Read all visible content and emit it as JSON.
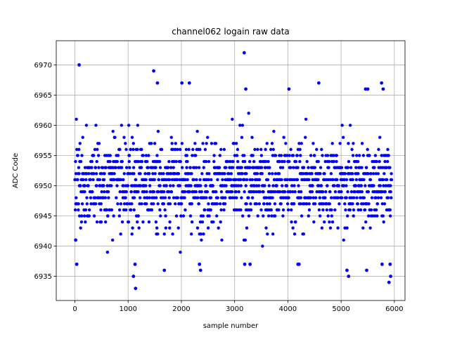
{
  "chart_data": {
    "type": "scatter",
    "title": "channel062 logain raw data",
    "xlabel": "sample number",
    "ylabel": "ADC Code",
    "xlim": [
      -350,
      6200
    ],
    "ylim": [
      6931,
      6974
    ],
    "xticks": [
      0,
      1000,
      2000,
      3000,
      4000,
      5000,
      6000
    ],
    "xtick_labels": [
      "0",
      "1000",
      "2000",
      "3000",
      "4000",
      "5000",
      "6000"
    ],
    "yticks": [
      6935,
      6940,
      6945,
      6950,
      6955,
      6960,
      6965,
      6970
    ],
    "ytick_labels": [
      "6935",
      "6940",
      "6945",
      "6950",
      "6955",
      "6960",
      "6965",
      "6970"
    ],
    "grid": true,
    "marker_color": "#0000ff",
    "n_samples": 5950,
    "center_value": 6950.5,
    "typical_range": [
      6939,
      6963
    ],
    "outliers": [
      {
        "x": 80,
        "y": 6970
      },
      {
        "x": 35,
        "y": 6937
      },
      {
        "x": 15,
        "y": 6941
      },
      {
        "x": 1100,
        "y": 6935
      },
      {
        "x": 1130,
        "y": 6937
      },
      {
        "x": 1140,
        "y": 6933
      },
      {
        "x": 1480,
        "y": 6969
      },
      {
        "x": 1550,
        "y": 6967
      },
      {
        "x": 1680,
        "y": 6936
      },
      {
        "x": 2010,
        "y": 6967
      },
      {
        "x": 2150,
        "y": 6967
      },
      {
        "x": 2340,
        "y": 6937
      },
      {
        "x": 2360,
        "y": 6936
      },
      {
        "x": 3180,
        "y": 6972
      },
      {
        "x": 3210,
        "y": 6966
      },
      {
        "x": 3190,
        "y": 6937
      },
      {
        "x": 3290,
        "y": 6937
      },
      {
        "x": 4020,
        "y": 6966
      },
      {
        "x": 4190,
        "y": 6937
      },
      {
        "x": 4210,
        "y": 6937
      },
      {
        "x": 4580,
        "y": 6967
      },
      {
        "x": 5110,
        "y": 6936
      },
      {
        "x": 5140,
        "y": 6935
      },
      {
        "x": 5460,
        "y": 6966
      },
      {
        "x": 5500,
        "y": 6966
      },
      {
        "x": 5480,
        "y": 6936
      },
      {
        "x": 5760,
        "y": 6967
      },
      {
        "x": 5790,
        "y": 6966
      },
      {
        "x": 5770,
        "y": 6937
      },
      {
        "x": 5900,
        "y": 6934
      },
      {
        "x": 5930,
        "y": 6935
      },
      {
        "x": 5920,
        "y": 6937
      }
    ]
  }
}
